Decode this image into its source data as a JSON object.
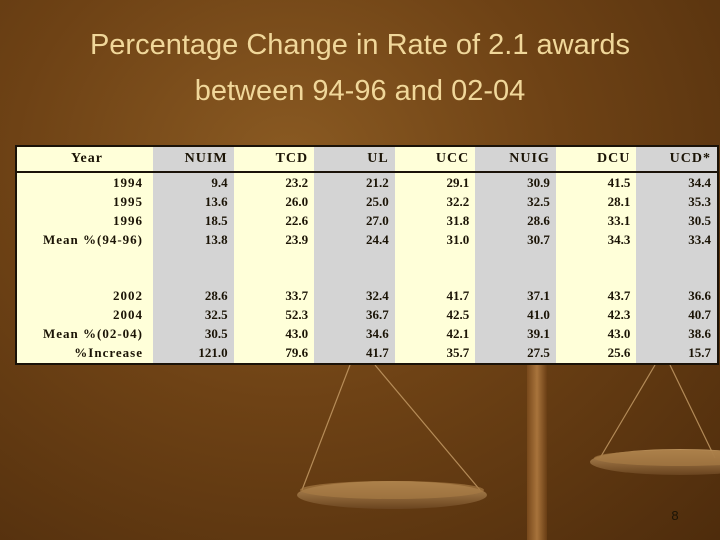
{
  "title": {
    "line1": "Percentage Change in Rate of 2.1 awards",
    "line2": "between 94-96 and 02-04"
  },
  "table": {
    "headers": [
      "Year",
      "NUIM",
      "TCD",
      "UL",
      "UCC",
      "NUIG",
      "DCU",
      "UCD*"
    ],
    "group1": [
      [
        "1994",
        "9.4",
        "23.2",
        "21.2",
        "29.1",
        "30.9",
        "41.5",
        "34.4"
      ],
      [
        "1995",
        "13.6",
        "26.0",
        "25.0",
        "32.2",
        "32.5",
        "28.1",
        "35.3"
      ],
      [
        "1996",
        "18.5",
        "22.6",
        "27.0",
        "31.8",
        "28.6",
        "33.1",
        "30.5"
      ],
      [
        "Mean %(94-96)",
        "13.8",
        "23.9",
        "24.4",
        "31.0",
        "30.7",
        "34.3",
        "33.4"
      ]
    ],
    "group2": [
      [
        "2002",
        "28.6",
        "33.7",
        "32.4",
        "41.7",
        "37.1",
        "43.7",
        "36.6"
      ],
      [
        "2004",
        "32.5",
        "52.3",
        "36.7",
        "42.5",
        "41.0",
        "42.3",
        "40.7"
      ],
      [
        "Mean %(02-04)",
        "30.5",
        "43.0",
        "34.6",
        "42.1",
        "39.1",
        "43.0",
        "38.6"
      ],
      [
        "%Increase",
        "121.0",
        "79.6",
        "41.7",
        "35.7",
        "27.5",
        "25.6",
        "15.7"
      ]
    ]
  },
  "page_number": "8"
}
